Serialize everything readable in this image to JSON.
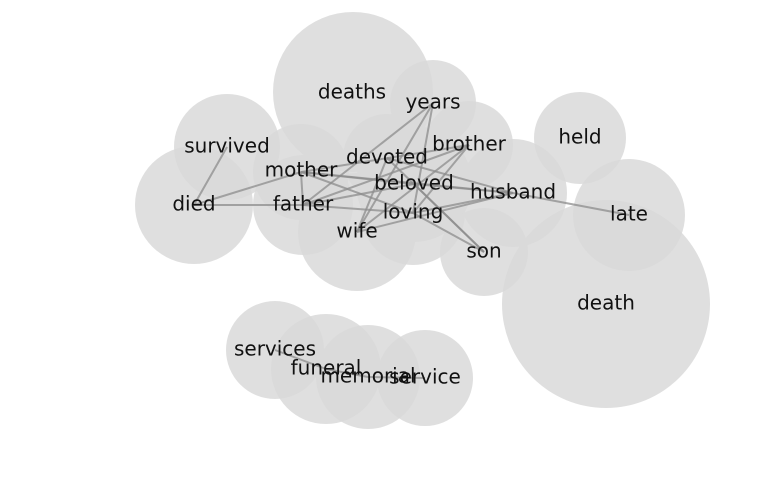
{
  "diagram": {
    "type": "word-cooccurrence-bubble-graph",
    "nodes": [
      {
        "id": "death",
        "label": "death"
      },
      {
        "id": "deaths",
        "label": "deaths"
      },
      {
        "id": "died",
        "label": "died"
      },
      {
        "id": "survived",
        "label": "survived"
      },
      {
        "id": "wife",
        "label": "wife"
      },
      {
        "id": "loving",
        "label": "loving"
      },
      {
        "id": "beloved",
        "label": "beloved"
      },
      {
        "id": "husband",
        "label": "husband"
      },
      {
        "id": "late",
        "label": "late"
      },
      {
        "id": "father",
        "label": "father"
      },
      {
        "id": "mother",
        "label": "mother"
      },
      {
        "id": "devoted",
        "label": "devoted"
      },
      {
        "id": "brother",
        "label": "brother"
      },
      {
        "id": "years",
        "label": "years"
      },
      {
        "id": "held",
        "label": "held"
      },
      {
        "id": "son",
        "label": "son"
      },
      {
        "id": "funeral",
        "label": "funeral"
      },
      {
        "id": "memorial",
        "label": "memorial"
      },
      {
        "id": "service",
        "label": "service"
      },
      {
        "id": "services",
        "label": "services"
      }
    ],
    "edges": [
      [
        "died",
        "survived"
      ],
      [
        "died",
        "father"
      ],
      [
        "died",
        "mother"
      ],
      [
        "mother",
        "father"
      ],
      [
        "mother",
        "beloved"
      ],
      [
        "mother",
        "loving"
      ],
      [
        "mother",
        "husband"
      ],
      [
        "father",
        "loving"
      ],
      [
        "father",
        "beloved"
      ],
      [
        "devoted",
        "husband"
      ],
      [
        "devoted",
        "son"
      ],
      [
        "devoted",
        "wife"
      ],
      [
        "years",
        "wife"
      ],
      [
        "years",
        "loving"
      ],
      [
        "years",
        "father"
      ],
      [
        "brother",
        "wife"
      ],
      [
        "brother",
        "loving"
      ],
      [
        "brother",
        "mother"
      ],
      [
        "brother",
        "father"
      ],
      [
        "beloved",
        "son"
      ],
      [
        "beloved",
        "husband"
      ],
      [
        "loving",
        "husband"
      ],
      [
        "loving",
        "son"
      ],
      [
        "wife",
        "husband"
      ],
      [
        "husband",
        "late"
      ],
      [
        "funeral",
        "services"
      ],
      [
        "funeral",
        "memorial"
      ],
      [
        "memorial",
        "service"
      ]
    ]
  }
}
